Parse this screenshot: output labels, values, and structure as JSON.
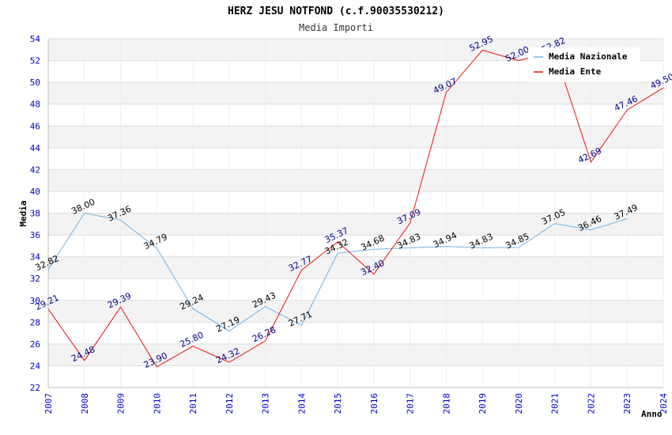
{
  "chart_data": {
    "type": "line",
    "title": "HERZ JESU NOTFOND (c.f.90035530212)",
    "subtitle": "Media Importi",
    "xlabel": "Anno",
    "ylabel": "Media",
    "ylim": [
      22,
      54
    ],
    "ytick_step": 2,
    "categories": [
      "2007",
      "2008",
      "2009",
      "2010",
      "2011",
      "2012",
      "2013",
      "2014",
      "2015",
      "2016",
      "2017",
      "2018",
      "2019",
      "2020",
      "2021",
      "2022",
      "2023",
      "2024"
    ],
    "grid": true,
    "legend_position": "top-right",
    "series": [
      {
        "name": "Media Nazionale",
        "color": "#6fb3e8",
        "label_color": "#000000",
        "values": [
          32.82,
          38.0,
          37.36,
          34.79,
          29.24,
          27.19,
          29.43,
          27.71,
          34.32,
          34.68,
          34.83,
          34.94,
          34.83,
          34.85,
          37.05,
          36.46,
          37.49,
          null
        ],
        "labels": [
          "32.82",
          "38.00",
          "37.36",
          "34.79",
          "29.24",
          "27.19",
          "29.43",
          "27.71",
          "34.32",
          "34.68",
          "34.83",
          "34.94",
          "34.83",
          "34.85",
          "37.05",
          "36.46",
          "37.49",
          null
        ]
      },
      {
        "name": "Media Ente",
        "color": "#ee1111",
        "label_color": "#00008b",
        "values": [
          29.21,
          24.48,
          29.39,
          23.9,
          25.8,
          24.32,
          26.28,
          32.77,
          35.37,
          32.4,
          37.09,
          49.07,
          52.95,
          52.0,
          52.82,
          42.69,
          47.46,
          49.5
        ],
        "labels": [
          "29.21",
          "24.48",
          "29.39",
          "23.90",
          "25.80",
          "24.32",
          "26.28",
          "32.77",
          "35.37",
          "32.40",
          "37.09",
          "49.07",
          "52.95",
          "52.00",
          "52.82",
          "42.69",
          "47.46",
          "49.50"
        ]
      }
    ]
  }
}
